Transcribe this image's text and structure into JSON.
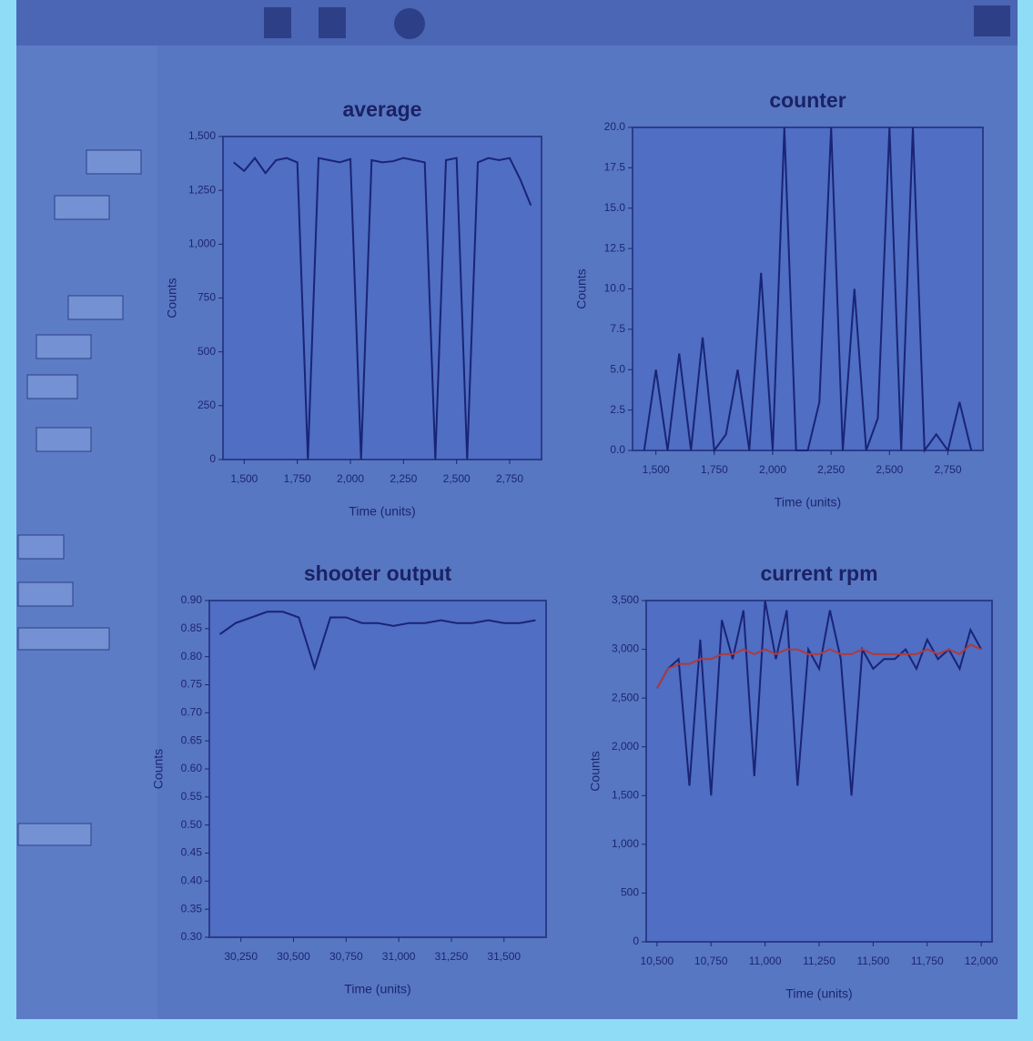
{
  "chart_data": [
    {
      "type": "line",
      "title": "average",
      "x_label": "Time (units)",
      "y_label": "Counts",
      "xlim": [
        1400,
        2900
      ],
      "xticks": [
        {
          "value": 1500,
          "label": "1,500"
        },
        {
          "value": 1750,
          "label": "1,750"
        },
        {
          "value": 2000,
          "label": "2,000"
        },
        {
          "value": 2250,
          "label": "2,250"
        },
        {
          "value": 2500,
          "label": "2,500"
        },
        {
          "value": 2750,
          "label": "2,750"
        }
      ],
      "ylim": [
        0,
        1500
      ],
      "yticks": [
        0,
        250,
        500,
        750,
        {
          "value": 1000,
          "label": "1,000"
        },
        {
          "value": 1250,
          "label": "1,250"
        },
        {
          "value": 1500,
          "label": "1,500"
        }
      ],
      "x": [
        1450,
        1500,
        1550,
        1600,
        1650,
        1700,
        1750,
        1800,
        1850,
        1900,
        1950,
        2000,
        2050,
        2100,
        2150,
        2200,
        2250,
        2300,
        2350,
        2400,
        2450,
        2500,
        2550,
        2600,
        2650,
        2700,
        2750,
        2800,
        2850
      ],
      "series": [
        {
          "color": "#1a2475",
          "values": [
            1380,
            1340,
            1400,
            1330,
            1390,
            1400,
            1380,
            0,
            1400,
            1390,
            1380,
            1395,
            0,
            1390,
            1380,
            1385,
            1400,
            1390,
            1380,
            0,
            1390,
            1400,
            0,
            1380,
            1400,
            1390,
            1400,
            1300,
            1180
          ]
        }
      ]
    },
    {
      "type": "line",
      "title": "counter",
      "x_label": "Time (units)",
      "y_label": "Counts",
      "xlim": [
        1400,
        2900
      ],
      "xticks": [
        {
          "value": 1500,
          "label": "1,500"
        },
        {
          "value": 1750,
          "label": "1,750"
        },
        {
          "value": 2000,
          "label": "2,000"
        },
        {
          "value": 2250,
          "label": "2,250"
        },
        {
          "value": 2500,
          "label": "2,500"
        },
        {
          "value": 2750,
          "label": "2,750"
        }
      ],
      "ylim": [
        0,
        20
      ],
      "yticks": [
        {
          "value": 0,
          "label": "0.0"
        },
        2.5,
        {
          "value": 5,
          "label": "5.0"
        },
        7.5,
        {
          "value": 10,
          "label": "10.0"
        },
        12.5,
        {
          "value": 15,
          "label": "15.0"
        },
        17.5,
        {
          "value": 20,
          "label": "20.0"
        }
      ],
      "x": [
        1450,
        1500,
        1550,
        1600,
        1650,
        1700,
        1750,
        1800,
        1850,
        1900,
        1950,
        2000,
        2050,
        2100,
        2150,
        2200,
        2250,
        2300,
        2350,
        2400,
        2450,
        2500,
        2550,
        2600,
        2650,
        2700,
        2750,
        2800,
        2850
      ],
      "series": [
        {
          "color": "#1a2475",
          "values": [
            0,
            5,
            0,
            6,
            0,
            7,
            0,
            1,
            5,
            0,
            11,
            0,
            20,
            0,
            0,
            3,
            20,
            0,
            10,
            0,
            2,
            20,
            0,
            20,
            0,
            1,
            0,
            3,
            0
          ]
        }
      ]
    },
    {
      "type": "line",
      "title": "shooter output",
      "x_label": "Time (units)",
      "y_label": "Counts",
      "xlim": [
        30100,
        31700
      ],
      "xticks": [
        {
          "value": 30250,
          "label": "30,250"
        },
        {
          "value": 30500,
          "label": "30,500"
        },
        {
          "value": 30750,
          "label": "30,750"
        },
        {
          "value": 31000,
          "label": "31,000"
        },
        {
          "value": 31250,
          "label": "31,250"
        },
        {
          "value": 31500,
          "label": "31,500"
        }
      ],
      "ylim": [
        0.3,
        0.9
      ],
      "yticks": [
        {
          "value": 0.3,
          "label": "0.30"
        },
        0.35,
        {
          "value": 0.4,
          "label": "0.40"
        },
        0.45,
        {
          "value": 0.5,
          "label": "0.50"
        },
        0.55,
        {
          "value": 0.6,
          "label": "0.60"
        },
        0.65,
        {
          "value": 0.7,
          "label": "0.70"
        },
        0.75,
        {
          "value": 0.8,
          "label": "0.80"
        },
        0.85,
        {
          "value": 0.9,
          "label": "0.90"
        }
      ],
      "x": [
        30150,
        30225,
        30300,
        30375,
        30450,
        30525,
        30600,
        30675,
        30750,
        30825,
        30900,
        30975,
        31050,
        31125,
        31200,
        31275,
        31350,
        31425,
        31500,
        31575,
        31650
      ],
      "series": [
        {
          "color": "#1a2475",
          "values": [
            0.84,
            0.86,
            0.87,
            0.88,
            0.88,
            0.87,
            0.78,
            0.87,
            0.87,
            0.86,
            0.86,
            0.855,
            0.86,
            0.86,
            0.865,
            0.86,
            0.86,
            0.865,
            0.86,
            0.86,
            0.865
          ]
        }
      ]
    },
    {
      "type": "line",
      "title": "current rpm",
      "x_label": "Time (units)",
      "y_label": "Counts",
      "xlim": [
        10450,
        12050
      ],
      "xticks": [
        {
          "value": 10500,
          "label": "10,500"
        },
        {
          "value": 10750,
          "label": "10,750"
        },
        {
          "value": 11000,
          "label": "11,000"
        },
        {
          "value": 11250,
          "label": "11,250"
        },
        {
          "value": 11500,
          "label": "11,500"
        },
        {
          "value": 11750,
          "label": "11,750"
        },
        {
          "value": 12000,
          "label": "12,000"
        }
      ],
      "ylim": [
        0,
        3500
      ],
      "yticks": [
        0,
        500,
        {
          "value": 1000,
          "label": "1,000"
        },
        {
          "value": 1500,
          "label": "1,500"
        },
        {
          "value": 2000,
          "label": "2,000"
        },
        {
          "value": 2500,
          "label": "2,500"
        },
        {
          "value": 3000,
          "label": "3,000"
        },
        {
          "value": 3500,
          "label": "3,500"
        }
      ],
      "x": [
        10500,
        10550,
        10600,
        10650,
        10700,
        10750,
        10800,
        10850,
        10900,
        10950,
        11000,
        11050,
        11100,
        11150,
        11200,
        11250,
        11300,
        11350,
        11400,
        11450,
        11500,
        11550,
        11600,
        11650,
        11700,
        11750,
        11800,
        11850,
        11900,
        11950,
        12000
      ],
      "series": [
        {
          "color": "#1a2475",
          "values": [
            2600,
            2800,
            2900,
            1600,
            3100,
            1500,
            3300,
            2900,
            3400,
            1700,
            3500,
            2900,
            3400,
            1600,
            3000,
            2800,
            3400,
            2900,
            1500,
            3000,
            2800,
            2900,
            2900,
            3000,
            2800,
            3100,
            2900,
            3000,
            2800,
            3200,
            3000
          ]
        },
        {
          "color": "#b03a3a",
          "values": [
            2600,
            2800,
            2850,
            2850,
            2900,
            2900,
            2950,
            2950,
            3000,
            2950,
            3000,
            2950,
            3000,
            3000,
            2950,
            2950,
            3000,
            2950,
            2950,
            3000,
            2950,
            2950,
            2950,
            2950,
            2950,
            3000,
            2950,
            3000,
            2950,
            3050,
            3000
          ]
        }
      ]
    }
  ]
}
